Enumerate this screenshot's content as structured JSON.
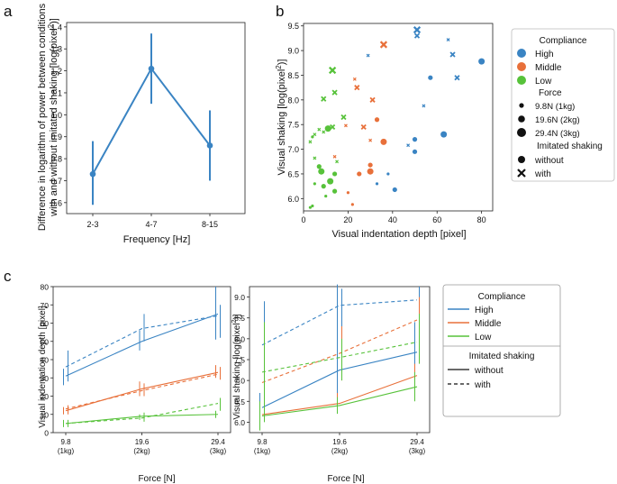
{
  "panel_labels": {
    "a": "a",
    "b": "b",
    "c": "c"
  },
  "colors": {
    "high": "#3a84c3",
    "middle": "#e8703a",
    "low": "#57c23a",
    "axis": "#222222"
  },
  "chart_data": [
    {
      "id": "a",
      "type": "line",
      "categories": [
        "2-3",
        "4-7",
        "8-15"
      ],
      "values": [
        0.73,
        1.21,
        0.86
      ],
      "errors_low": [
        0.59,
        1.05,
        0.7
      ],
      "errors_high": [
        0.88,
        1.37,
        1.02
      ],
      "xlabel": "Frequency [Hz]",
      "ylabel_line1": "Difference in logarithm of power between conditions",
      "ylabel_line2": "with and without imitated shaking [log(pixel",
      "ylabel_sup": "2",
      "ylabel_end": ")]",
      "ylim": [
        0.55,
        1.42
      ],
      "yticks": [
        "0.6",
        "0.7",
        "0.8",
        "0.9",
        "1.0",
        "1.1",
        "1.2",
        "1.3",
        "1.4"
      ]
    },
    {
      "id": "b",
      "type": "scatter",
      "xlabel": "Visual indentation depth [pixel]",
      "ylabel": "Visual shaking  [log(pixel",
      "ylabel_sup": "2",
      "ylabel_end": ")]",
      "xlim": [
        0,
        85
      ],
      "ylim": [
        5.75,
        9.55
      ],
      "xticks": [
        "0",
        "20",
        "40",
        "60",
        "80"
      ],
      "yticks": [
        "6.0",
        "6.5",
        "7.0",
        "7.5",
        "8.0",
        "8.5",
        "9.0",
        "9.5"
      ],
      "points": [
        {
          "g": "high",
          "f": 1,
          "s": "o",
          "x": 50,
          "y": 7.2
        },
        {
          "g": "high",
          "f": 1,
          "s": "o",
          "x": 57,
          "y": 8.45
        },
        {
          "g": "high",
          "f": 2,
          "s": "o",
          "x": 63,
          "y": 7.3
        },
        {
          "g": "high",
          "f": 2,
          "s": "o",
          "x": 80,
          "y": 8.78
        },
        {
          "g": "high",
          "f": 1,
          "s": "o",
          "x": 41,
          "y": 6.18
        },
        {
          "g": "high",
          "f": 1,
          "s": "o",
          "x": 50,
          "y": 6.95
        },
        {
          "g": "high",
          "f": 0,
          "s": "o",
          "x": 38,
          "y": 6.5
        },
        {
          "g": "high",
          "f": 0,
          "s": "o",
          "x": 33,
          "y": 6.3
        },
        {
          "g": "high",
          "f": 2,
          "s": "x",
          "x": 51,
          "y": 9.42
        },
        {
          "g": "high",
          "f": 1,
          "s": "x",
          "x": 51,
          "y": 9.3
        },
        {
          "g": "high",
          "f": 1,
          "s": "x",
          "x": 69,
          "y": 8.45
        },
        {
          "g": "high",
          "f": 1,
          "s": "x",
          "x": 67,
          "y": 8.92
        },
        {
          "g": "high",
          "f": 0,
          "s": "x",
          "x": 65,
          "y": 9.22
        },
        {
          "g": "high",
          "f": 0,
          "s": "x",
          "x": 54,
          "y": 7.88
        },
        {
          "g": "high",
          "f": 0,
          "s": "x",
          "x": 47,
          "y": 7.08
        },
        {
          "g": "high",
          "f": 0,
          "s": "x",
          "x": 29,
          "y": 8.9
        },
        {
          "g": "middle",
          "f": 2,
          "s": "o",
          "x": 36,
          "y": 7.15
        },
        {
          "g": "middle",
          "f": 2,
          "s": "o",
          "x": 30,
          "y": 6.55
        },
        {
          "g": "middle",
          "f": 1,
          "s": "o",
          "x": 30,
          "y": 6.68
        },
        {
          "g": "middle",
          "f": 1,
          "s": "o",
          "x": 33,
          "y": 7.6
        },
        {
          "g": "middle",
          "f": 1,
          "s": "o",
          "x": 25,
          "y": 6.5
        },
        {
          "g": "middle",
          "f": 0,
          "s": "o",
          "x": 20,
          "y": 6.12
        },
        {
          "g": "middle",
          "f": 0,
          "s": "o",
          "x": 22,
          "y": 5.88
        },
        {
          "g": "middle",
          "f": 2,
          "s": "x",
          "x": 36,
          "y": 9.12
        },
        {
          "g": "middle",
          "f": 1,
          "s": "x",
          "x": 31,
          "y": 8.0
        },
        {
          "g": "middle",
          "f": 1,
          "s": "x",
          "x": 24,
          "y": 8.25
        },
        {
          "g": "middle",
          "f": 1,
          "s": "x",
          "x": 27,
          "y": 7.45
        },
        {
          "g": "middle",
          "f": 0,
          "s": "x",
          "x": 23,
          "y": 8.42
        },
        {
          "g": "middle",
          "f": 0,
          "s": "x",
          "x": 30,
          "y": 7.18
        },
        {
          "g": "middle",
          "f": 0,
          "s": "x",
          "x": 19,
          "y": 7.48
        },
        {
          "g": "middle",
          "f": 0,
          "s": "x",
          "x": 14,
          "y": 6.85
        },
        {
          "g": "low",
          "f": 2,
          "s": "o",
          "x": 8,
          "y": 6.55
        },
        {
          "g": "low",
          "f": 2,
          "s": "o",
          "x": 12,
          "y": 6.35
        },
        {
          "g": "low",
          "f": 2,
          "s": "o",
          "x": 11,
          "y": 7.42
        },
        {
          "g": "low",
          "f": 1,
          "s": "o",
          "x": 9,
          "y": 6.25
        },
        {
          "g": "low",
          "f": 1,
          "s": "o",
          "x": 14,
          "y": 6.15
        },
        {
          "g": "low",
          "f": 1,
          "s": "o",
          "x": 7,
          "y": 6.65
        },
        {
          "g": "low",
          "f": 1,
          "s": "o",
          "x": 14,
          "y": 6.5
        },
        {
          "g": "low",
          "f": 0,
          "s": "o",
          "x": 3,
          "y": 5.82
        },
        {
          "g": "low",
          "f": 0,
          "s": "o",
          "x": 4,
          "y": 5.85
        },
        {
          "g": "low",
          "f": 0,
          "s": "o",
          "x": 10,
          "y": 6.05
        },
        {
          "g": "low",
          "f": 0,
          "s": "o",
          "x": 5,
          "y": 6.3
        },
        {
          "g": "low",
          "f": 0,
          "s": "o",
          "x": 4,
          "y": 7.25
        },
        {
          "g": "low",
          "f": 2,
          "s": "x",
          "x": 13,
          "y": 8.6
        },
        {
          "g": "low",
          "f": 1,
          "s": "x",
          "x": 18,
          "y": 7.65
        },
        {
          "g": "low",
          "f": 1,
          "s": "x",
          "x": 13,
          "y": 7.45
        },
        {
          "g": "low",
          "f": 1,
          "s": "x",
          "x": 9,
          "y": 8.02
        },
        {
          "g": "low",
          "f": 1,
          "s": "x",
          "x": 14,
          "y": 8.15
        },
        {
          "g": "low",
          "f": 0,
          "s": "x",
          "x": 7,
          "y": 7.4
        },
        {
          "g": "low",
          "f": 0,
          "s": "x",
          "x": 5,
          "y": 7.3
        },
        {
          "g": "low",
          "f": 0,
          "s": "x",
          "x": 3,
          "y": 7.15
        },
        {
          "g": "low",
          "f": 0,
          "s": "x",
          "x": 15,
          "y": 6.75
        },
        {
          "g": "low",
          "f": 0,
          "s": "x",
          "x": 5,
          "y": 6.82
        },
        {
          "g": "low",
          "f": 0,
          "s": "x",
          "x": 9,
          "y": 7.35
        }
      ]
    },
    {
      "id": "c1",
      "type": "line",
      "x": [
        9.8,
        19.6,
        29.4
      ],
      "xtick_labels": [
        "9.8",
        "19.6",
        "29.4"
      ],
      "xtick_sublabels": [
        "(1kg)",
        "(2kg)",
        "(3kg)"
      ],
      "xlabel": "Force [N]",
      "ylabel": "Visual indentation depth [pixel]",
      "ylim": [
        0,
        80
      ],
      "yticks": [
        "0",
        "10",
        "20",
        "30",
        "40",
        "50",
        "60",
        "70",
        "80"
      ],
      "series": [
        {
          "name": "High without",
          "g": "high",
          "style": "solid",
          "values": [
            31,
            50,
            65
          ],
          "err": [
            [
              26,
              35
            ],
            [
              45,
              56
            ],
            [
              51,
              80
            ]
          ]
        },
        {
          "name": "High with",
          "g": "high",
          "style": "dashed",
          "values": [
            36,
            57,
            64
          ],
          "err": [
            [
              28,
              45
            ],
            [
              50,
              65
            ],
            [
              52,
              70
            ]
          ]
        },
        {
          "name": "Middle without",
          "g": "middle",
          "style": "solid",
          "values": [
            12,
            24,
            33
          ],
          "err": [
            [
              10,
              14
            ],
            [
              20,
              28
            ],
            [
              30,
              37
            ]
          ]
        },
        {
          "name": "Middle with",
          "g": "middle",
          "style": "dashed",
          "values": [
            13,
            23,
            32
          ],
          "err": [
            [
              10,
              15
            ],
            [
              20,
              27
            ],
            [
              29,
              36
            ]
          ]
        },
        {
          "name": "Low without",
          "g": "low",
          "style": "solid",
          "values": [
            5,
            9,
            10
          ],
          "err": [
            [
              3,
              7
            ],
            [
              7,
              10
            ],
            [
              8,
              12
            ]
          ]
        },
        {
          "name": "Low with",
          "g": "low",
          "style": "dashed",
          "values": [
            5,
            8,
            16
          ],
          "err": [
            [
              3,
              7
            ],
            [
              6,
              11
            ],
            [
              12,
              19
            ]
          ]
        }
      ]
    },
    {
      "id": "c2",
      "type": "line",
      "x": [
        9.8,
        19.6,
        29.4
      ],
      "xtick_labels": [
        "9.8",
        "19.6",
        "29.4"
      ],
      "xtick_sublabels": [
        "(1kg)",
        "(2kg)",
        "(3kg)"
      ],
      "xlabel": "Force [N]",
      "ylabel": "Visual shaking  [log(pixel",
      "ylabel_sup": "2",
      "ylabel_end": ")]",
      "ylim": [
        5.75,
        9.25
      ],
      "yticks": [
        "6.0",
        "6.5",
        "7.0",
        "7.5",
        "8.0",
        "8.5",
        "9.0"
      ],
      "series": [
        {
          "name": "High without",
          "g": "high",
          "style": "solid",
          "values": [
            6.35,
            7.25,
            7.68
          ],
          "err": [
            [
              6.0,
              6.7
            ],
            [
              6.4,
              9.3
            ],
            [
              7.0,
              8.4
            ]
          ]
        },
        {
          "name": "High with",
          "g": "high",
          "style": "dashed",
          "values": [
            7.85,
            8.8,
            8.93
          ],
          "err": [
            [
              6.5,
              8.9
            ],
            [
              8.0,
              9.2
            ],
            [
              8.0,
              9.25
            ]
          ]
        },
        {
          "name": "Middle without",
          "g": "middle",
          "style": "solid",
          "values": [
            6.18,
            6.45,
            7.12
          ],
          "err": [
            [
              6.0,
              6.4
            ],
            [
              6.3,
              6.7
            ],
            [
              6.8,
              7.4
            ]
          ]
        },
        {
          "name": "Middle with",
          "g": "middle",
          "style": "dashed",
          "values": [
            6.95,
            7.65,
            8.45
          ],
          "err": [
            [
              6.5,
              7.4
            ],
            [
              7.0,
              8.3
            ],
            [
              7.6,
              9.0
            ]
          ]
        },
        {
          "name": "Low without",
          "g": "low",
          "style": "solid",
          "values": [
            6.15,
            6.4,
            6.85
          ],
          "err": [
            [
              5.8,
              6.5
            ],
            [
              6.2,
              6.6
            ],
            [
              6.5,
              7.2
            ]
          ]
        },
        {
          "name": "Low with",
          "g": "low",
          "style": "dashed",
          "values": [
            7.2,
            7.55,
            7.92
          ],
          "err": [
            [
              6.0,
              8.4
            ],
            [
              7.0,
              8.0
            ],
            [
              7.4,
              8.6
            ]
          ]
        }
      ]
    }
  ],
  "legend_b": {
    "compliance_title": "Compliance",
    "high": "High",
    "middle": "Middle",
    "low": "Low",
    "force_title": "Force",
    "force_1": "9.8N (1kg)",
    "force_2": "19.6N (2kg)",
    "force_3": "29.4N (3kg)",
    "shaking_title_1": "Imitated shaking",
    "shaking_title_2": "without",
    "shaking_with": "with"
  },
  "legend_c": {
    "compliance_title": "Compliance",
    "high": "High",
    "middle": "Middle",
    "low": "Low",
    "shaking_title": "Imitated shaking",
    "without": "without",
    "with": "with"
  }
}
